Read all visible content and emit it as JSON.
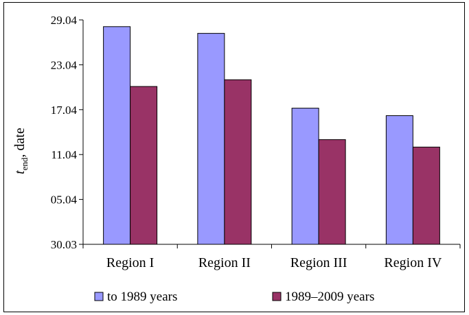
{
  "chart_data": {
    "type": "bar",
    "ylabel": {
      "main": "t",
      "subscript": "end",
      "suffix": ", date"
    },
    "y_ticks": [
      "30.03",
      "05.04",
      "11.04",
      "17.04",
      "23.04",
      "29.04"
    ],
    "y_tick_values": [
      0,
      6,
      12,
      18,
      24,
      30
    ],
    "ylim": [
      0,
      30
    ],
    "grid": false,
    "legend_position": "bottom",
    "categories": [
      "Region I",
      "Region II",
      "Region III",
      "Region IV"
    ],
    "series": [
      {
        "name": "to 1989 years",
        "color": "#9999ff",
        "values": [
          29.1,
          28.2,
          18.2,
          17.2
        ]
      },
      {
        "name": "1989–2009 years",
        "color": "#993366",
        "values": [
          21.1,
          22.0,
          14.0,
          13.0
        ]
      }
    ]
  }
}
